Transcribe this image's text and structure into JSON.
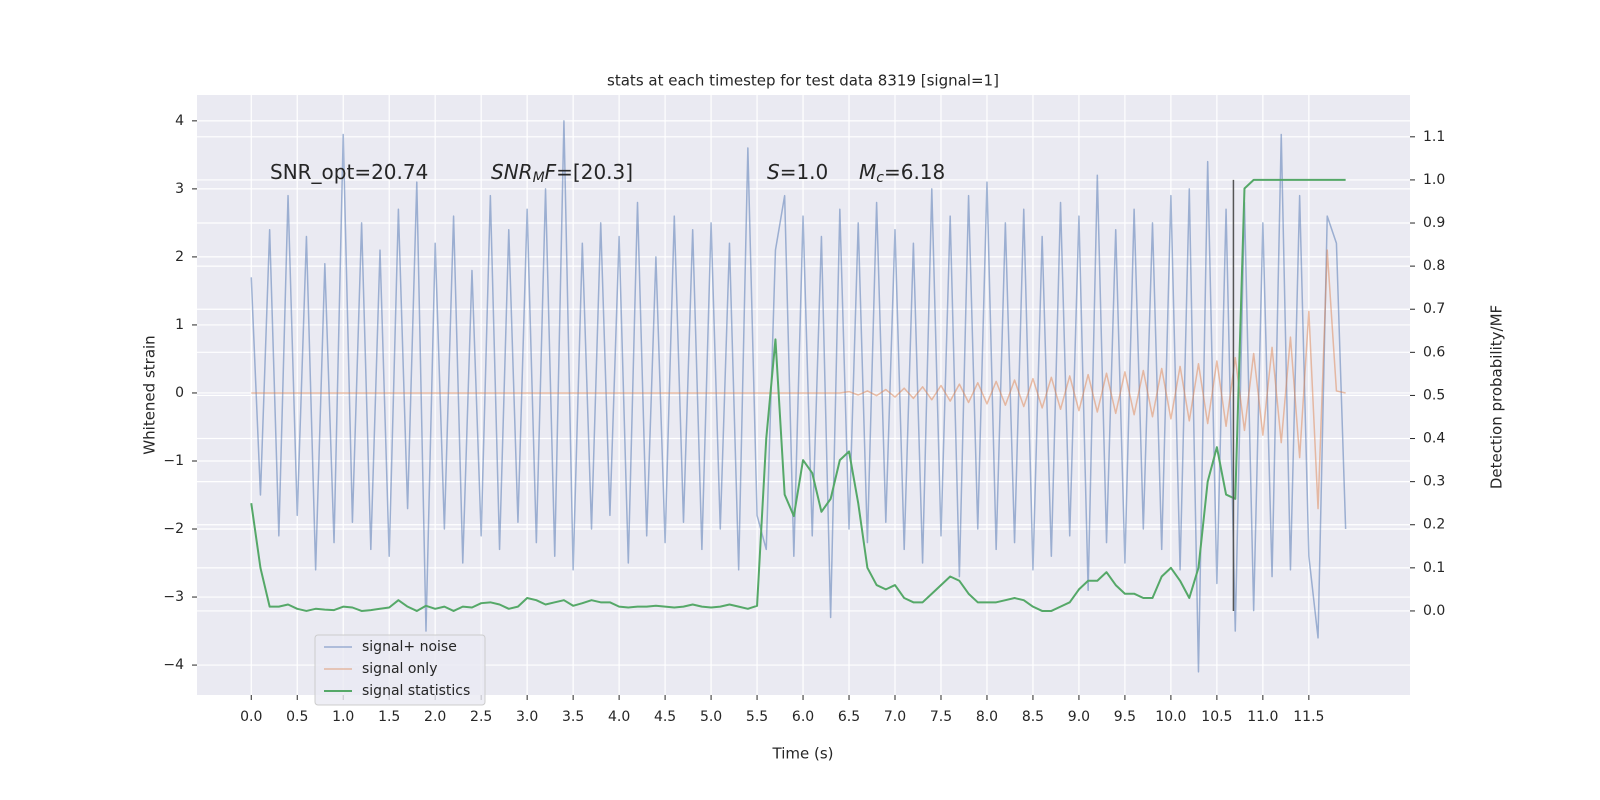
{
  "chart_data": {
    "type": "line",
    "title": "stats at each timestep for test data 8319 [signal=1]",
    "xlabel": "Time (s)",
    "ylabel": "Whitened strain",
    "y2label": "Detection probability/MF",
    "annotations": [
      {
        "parts": [
          {
            "text": "SNR_opt=20.74"
          }
        ]
      },
      {
        "parts": [
          {
            "text": "SNR",
            "italic": true
          },
          {
            "text": "M",
            "italic": true,
            "sub": true
          },
          {
            "text": "F",
            "italic": true
          },
          {
            "text": "=[20.3]"
          }
        ]
      },
      {
        "parts": [
          {
            "text": "S",
            "italic": true
          },
          {
            "text": "=1.0"
          }
        ]
      },
      {
        "parts": [
          {
            "text": "M",
            "italic": true
          },
          {
            "text": "c",
            "italic": true,
            "sub": true
          },
          {
            "text": "=6.18"
          }
        ]
      }
    ],
    "x": [
      0.0,
      0.1,
      0.2,
      0.3,
      0.4,
      0.5,
      0.6,
      0.7,
      0.8,
      0.9,
      1.0,
      1.1,
      1.2,
      1.3,
      1.4,
      1.5,
      1.6,
      1.7,
      1.8,
      1.9,
      2.0,
      2.1,
      2.2,
      2.3,
      2.4,
      2.5,
      2.6,
      2.7,
      2.8,
      2.9,
      3.0,
      3.1,
      3.2,
      3.3,
      3.4,
      3.5,
      3.6,
      3.7,
      3.8,
      3.9,
      4.0,
      4.1,
      4.2,
      4.3,
      4.4,
      4.5,
      4.6,
      4.7,
      4.8,
      4.9,
      5.0,
      5.1,
      5.2,
      5.3,
      5.4,
      5.5,
      5.6,
      5.7,
      5.8,
      5.9,
      6.0,
      6.1,
      6.2,
      6.3,
      6.4,
      6.5,
      6.6,
      6.7,
      6.8,
      6.9,
      7.0,
      7.1,
      7.2,
      7.3,
      7.4,
      7.5,
      7.6,
      7.7,
      7.8,
      7.9,
      8.0,
      8.1,
      8.2,
      8.3,
      8.4,
      8.5,
      8.6,
      8.7,
      8.8,
      8.9,
      9.0,
      9.1,
      9.2,
      9.3,
      9.4,
      9.5,
      9.6,
      9.7,
      9.8,
      9.9,
      10.0,
      10.1,
      10.2,
      10.3,
      10.4,
      10.5,
      10.6,
      10.7,
      10.8,
      10.9,
      11.0,
      11.1,
      11.2,
      11.3,
      11.4,
      11.5,
      11.6,
      11.7,
      11.8,
      11.9
    ],
    "series": [
      {
        "name": "signal+ noise",
        "color": "#4c72b0",
        "opacity": 0.5,
        "width": 1.5,
        "values": [
          1.7,
          -1.5,
          2.4,
          -2.1,
          2.9,
          -1.8,
          2.3,
          -2.6,
          1.9,
          -2.2,
          3.8,
          -1.9,
          2.5,
          -2.3,
          2.1,
          -2.4,
          2.7,
          -1.7,
          3.1,
          -3.5,
          2.2,
          -2.0,
          2.6,
          -2.5,
          1.8,
          -2.1,
          2.9,
          -2.3,
          2.4,
          -1.9,
          2.7,
          -2.2,
          3.0,
          -2.4,
          4.0,
          -2.6,
          2.2,
          -2.0,
          2.5,
          -1.8,
          2.3,
          -2.5,
          2.8,
          -2.1,
          2.0,
          -2.2,
          2.6,
          -1.9,
          2.4,
          -2.3,
          2.5,
          -2.0,
          2.2,
          -2.6,
          3.6,
          -1.8,
          -2.3,
          2.1,
          2.9,
          -2.4,
          2.6,
          -2.1,
          2.3,
          -3.3,
          2.7,
          -2.0,
          2.5,
          -2.2,
          2.8,
          -1.9,
          2.4,
          -2.3,
          2.2,
          -2.5,
          3.0,
          -2.1,
          2.6,
          -2.7,
          2.9,
          -2.0,
          3.1,
          -2.3,
          2.5,
          -2.2,
          2.7,
          -2.6,
          2.3,
          -2.4,
          2.8,
          -2.1,
          2.6,
          -2.9,
          3.2,
          -2.2,
          2.4,
          -2.5,
          2.7,
          -2.0,
          2.5,
          -2.3,
          2.9,
          -2.6,
          3.0,
          -4.1,
          3.4,
          -2.8,
          2.7,
          -3.5,
          2.8,
          -3.2,
          2.5,
          -2.7,
          3.8,
          -2.6,
          2.9,
          -2.4,
          -3.6,
          2.6,
          2.2,
          -2.0
        ]
      },
      {
        "name": "signal only",
        "color": "#dd8452",
        "opacity": 0.5,
        "width": 1.5,
        "values": [
          0.0,
          0.0,
          0.0,
          0.0,
          0.0,
          0.0,
          0.0,
          0.0,
          0.0,
          0.0,
          0.0,
          0.0,
          0.0,
          0.0,
          0.0,
          0.0,
          0.0,
          0.0,
          0.0,
          0.0,
          0.0,
          0.0,
          0.0,
          0.0,
          0.0,
          0.0,
          0.0,
          0.0,
          0.0,
          0.0,
          0.0,
          0.0,
          0.0,
          0.0,
          0.0,
          0.0,
          0.0,
          0.0,
          0.0,
          0.0,
          0.0,
          0.0,
          0.0,
          0.0,
          0.0,
          0.0,
          0.0,
          0.0,
          0.0,
          0.0,
          0.0,
          0.0,
          0.0,
          0.0,
          0.0,
          0.0,
          0.0,
          0.0,
          0.0,
          0.0,
          0.0,
          0.0,
          0.0,
          0.0,
          0.0,
          0.02,
          -0.03,
          0.03,
          -0.04,
          0.05,
          -0.06,
          0.07,
          -0.08,
          0.09,
          -0.1,
          0.11,
          -0.12,
          0.13,
          -0.14,
          0.15,
          -0.16,
          0.17,
          -0.18,
          0.19,
          -0.2,
          0.21,
          -0.22,
          0.23,
          -0.24,
          0.25,
          -0.26,
          0.27,
          -0.28,
          0.29,
          -0.3,
          0.31,
          -0.32,
          0.33,
          -0.35,
          0.36,
          -0.38,
          0.39,
          -0.41,
          0.43,
          -0.45,
          0.47,
          -0.49,
          0.52,
          -0.55,
          0.58,
          -0.62,
          0.67,
          -0.73,
          0.82,
          -0.95,
          1.2,
          -1.7,
          2.1,
          0.03,
          0.0
        ]
      },
      {
        "name": "signal statistics",
        "color": "#55a868",
        "opacity": 1,
        "width": 2,
        "axis": "y2",
        "values": [
          0.25,
          0.1,
          0.01,
          0.01,
          0.015,
          0.005,
          0.0,
          0.005,
          0.003,
          0.002,
          0.01,
          0.008,
          0.0,
          0.002,
          0.005,
          0.008,
          0.025,
          0.01,
          0.0,
          0.012,
          0.005,
          0.01,
          0.0,
          0.01,
          0.008,
          0.018,
          0.02,
          0.015,
          0.005,
          0.01,
          0.03,
          0.025,
          0.015,
          0.02,
          0.025,
          0.012,
          0.018,
          0.025,
          0.02,
          0.02,
          0.01,
          0.008,
          0.01,
          0.01,
          0.012,
          0.01,
          0.008,
          0.01,
          0.015,
          0.01,
          0.008,
          0.01,
          0.015,
          0.01,
          0.005,
          0.012,
          0.4,
          0.63,
          0.27,
          0.22,
          0.35,
          0.32,
          0.23,
          0.26,
          0.35,
          0.37,
          0.25,
          0.1,
          0.06,
          0.05,
          0.06,
          0.03,
          0.02,
          0.02,
          0.04,
          0.06,
          0.08,
          0.07,
          0.04,
          0.02,
          0.02,
          0.02,
          0.025,
          0.03,
          0.025,
          0.01,
          0.0,
          0.0,
          0.01,
          0.02,
          0.05,
          0.07,
          0.07,
          0.09,
          0.06,
          0.04,
          0.04,
          0.03,
          0.03,
          0.08,
          0.1,
          0.07,
          0.03,
          0.1,
          0.3,
          0.38,
          0.27,
          0.26,
          0.98,
          1.0,
          1.0,
          1.0,
          1.0,
          1.0,
          1.0,
          1.0,
          1.0,
          1.0,
          1.0,
          1.0
        ]
      }
    ],
    "vline": {
      "x": 10.68,
      "ymin": 0,
      "ymax": 1,
      "color": "#555555",
      "axis": "y2"
    },
    "xlim": [
      -0.59,
      12.6
    ],
    "ylim": [
      -4.44,
      4.38
    ],
    "y2lim": [
      -0.195,
      1.197
    ],
    "xticks": [
      {
        "value": 0,
        "label": "0.0"
      },
      {
        "value": 0.5,
        "label": "0.5"
      },
      {
        "value": 1,
        "label": "1.0"
      },
      {
        "value": 1.5,
        "label": "1.5"
      },
      {
        "value": 2,
        "label": "2.0"
      },
      {
        "value": 2.5,
        "label": "2.5"
      },
      {
        "value": 3,
        "label": "3.0"
      },
      {
        "value": 3.5,
        "label": "3.5"
      },
      {
        "value": 4,
        "label": "4.0"
      },
      {
        "value": 4.5,
        "label": "4.5"
      },
      {
        "value": 5,
        "label": "5.0"
      },
      {
        "value": 5.5,
        "label": "5.5"
      },
      {
        "value": 6,
        "label": "6.0"
      },
      {
        "value": 6.5,
        "label": "6.5"
      },
      {
        "value": 7,
        "label": "7.0"
      },
      {
        "value": 7.5,
        "label": "7.5"
      },
      {
        "value": 8,
        "label": "8.0"
      },
      {
        "value": 8.5,
        "label": "8.5"
      },
      {
        "value": 9,
        "label": "9.0"
      },
      {
        "value": 9.5,
        "label": "9.5"
      },
      {
        "value": 10,
        "label": "10.0"
      },
      {
        "value": 10.5,
        "label": "10.5"
      },
      {
        "value": 11,
        "label": "11.0"
      },
      {
        "value": 11.5,
        "label": "11.5"
      }
    ],
    "yticks": [
      {
        "value": -4,
        "label": "−4"
      },
      {
        "value": -3,
        "label": "−3"
      },
      {
        "value": -2,
        "label": "−2"
      },
      {
        "value": -1,
        "label": "−1"
      },
      0,
      1,
      2,
      3,
      4
    ],
    "y2ticks": [
      {
        "value": 0,
        "label": "0.0"
      },
      {
        "value": 0.1,
        "label": "0.1"
      },
      {
        "value": 0.2,
        "label": "0.2"
      },
      {
        "value": 0.3,
        "label": "0.3"
      },
      {
        "value": 0.4,
        "label": "0.4"
      },
      {
        "value": 0.5,
        "label": "0.5"
      },
      {
        "value": 0.6,
        "label": "0.6"
      },
      {
        "value": 0.7,
        "label": "0.7"
      },
      {
        "value": 0.8,
        "label": "0.8"
      },
      {
        "value": 0.9,
        "label": "0.9"
      },
      {
        "value": 1,
        "label": "1.0"
      },
      {
        "value": 1.1,
        "label": "1.1"
      }
    ],
    "grid": true,
    "legend": "lower left"
  }
}
